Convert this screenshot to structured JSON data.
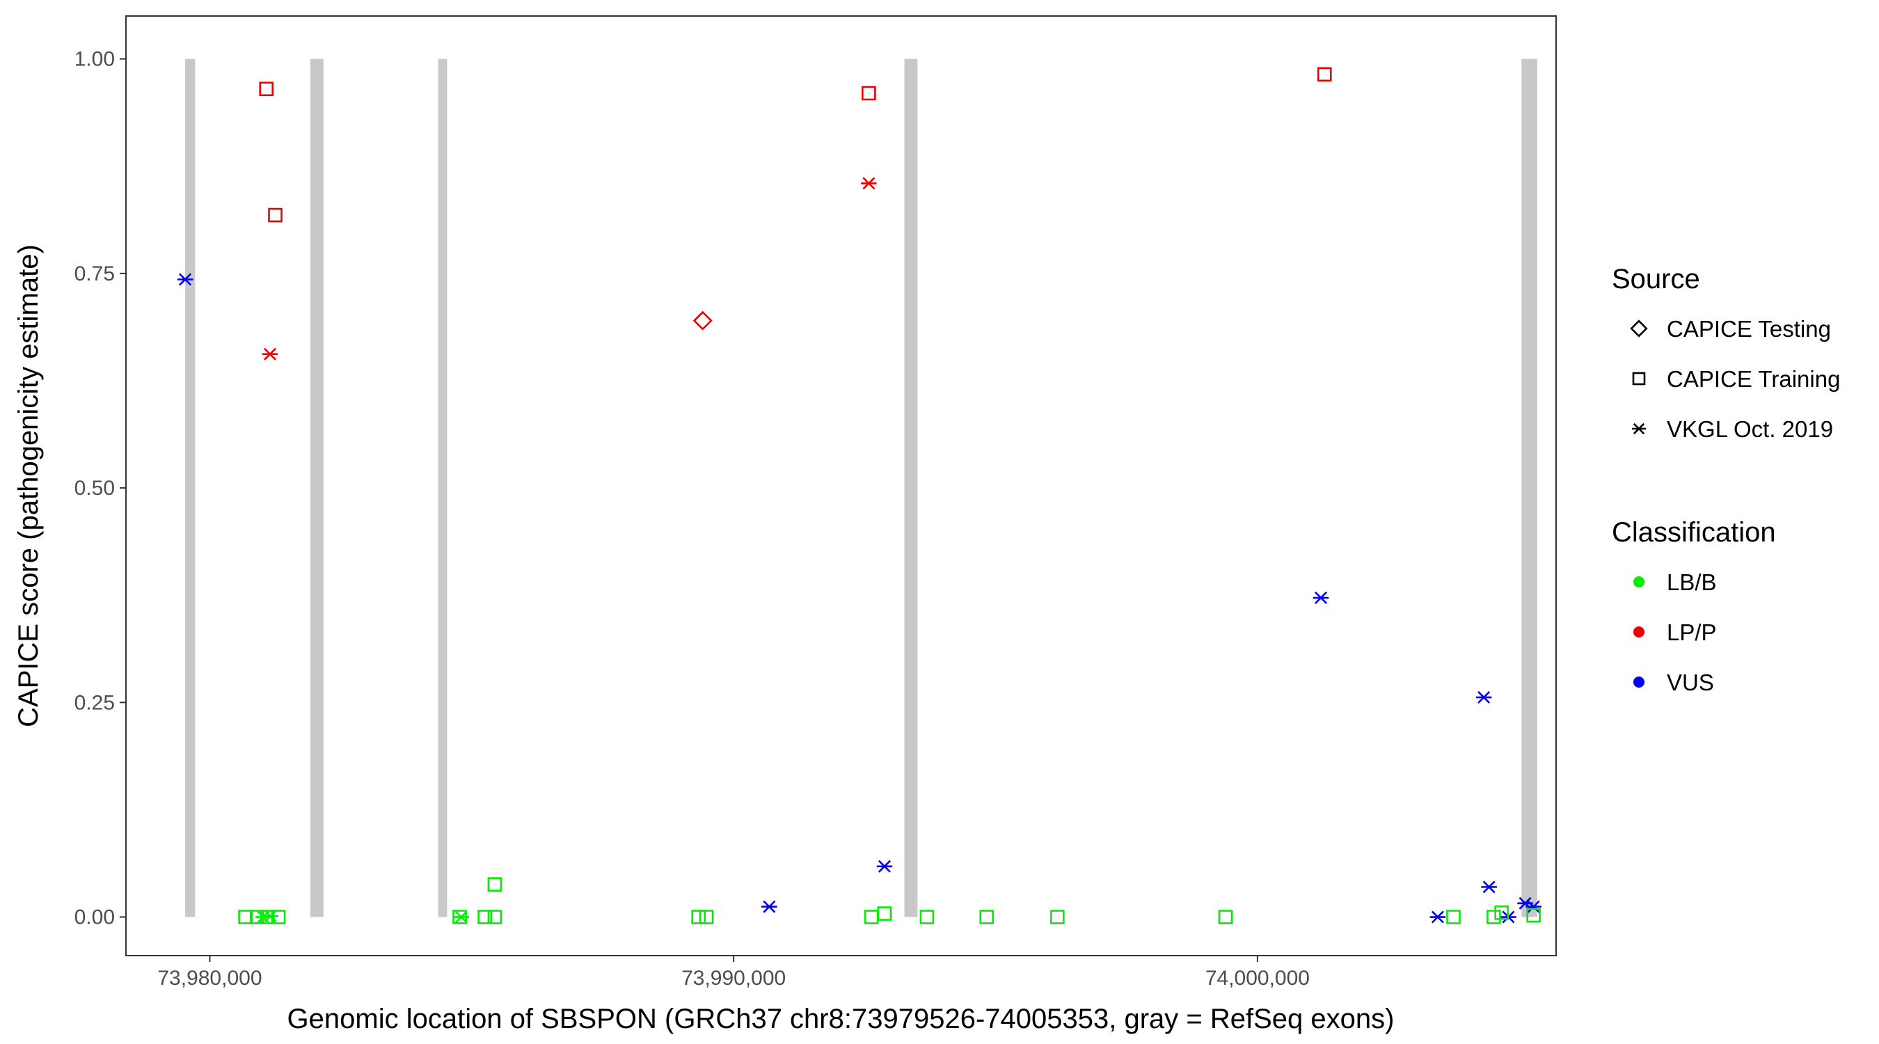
{
  "chart_data": {
    "type": "scatter",
    "xlabel": "Genomic location of SBSPON (GRCh37 chr8:73979526-74005353, gray = RefSeq exons)",
    "ylabel": "CAPICE score (pathogenicity estimate)",
    "xlim": [
      73978400,
      74005700
    ],
    "ylim": [
      -0.045,
      1.05
    ],
    "x_ticks": [
      73980000,
      73990000,
      74000000
    ],
    "x_tick_labels": [
      "73,980,000",
      "73,990,000",
      "74,000,000"
    ],
    "y_ticks": [
      0,
      0.25,
      0.5,
      0.75,
      1.0
    ],
    "y_tick_labels": [
      "0.00",
      "0.25",
      "0.50",
      "0.75",
      "1.00"
    ],
    "grid": false,
    "exon_color": "#c8c8c8",
    "exons": [
      {
        "start": 73979530,
        "end": 73979720
      },
      {
        "start": 73981920,
        "end": 73982170
      },
      {
        "start": 73984360,
        "end": 73984530
      },
      {
        "start": 73993260,
        "end": 73993510
      },
      {
        "start": 74005040,
        "end": 74005340
      }
    ],
    "legend": {
      "position": "right",
      "source": {
        "title": "Source",
        "items": [
          {
            "label": "CAPICE Testing",
            "shape": "diamond"
          },
          {
            "label": "CAPICE Training",
            "shape": "square"
          },
          {
            "label": "VKGL Oct. 2019",
            "shape": "asterisk"
          }
        ]
      },
      "classification": {
        "title": "Classification",
        "items": [
          {
            "label": "LB/B",
            "color": "#00ee00"
          },
          {
            "label": "LP/P",
            "color": "#ee0000"
          },
          {
            "label": "VUS",
            "color": "#0000ee"
          }
        ]
      }
    },
    "points": [
      {
        "x": 73981080,
        "y": 0.965,
        "source": "CAPICE Training",
        "class": "LP/P"
      },
      {
        "x": 73981250,
        "y": 0.818,
        "source": "CAPICE Training",
        "class": "LP/P"
      },
      {
        "x": 73981150,
        "y": 0.656,
        "source": "VKGL Oct. 2019",
        "class": "LP/P"
      },
      {
        "x": 73992580,
        "y": 0.96,
        "source": "CAPICE Training",
        "class": "LP/P"
      },
      {
        "x": 73992580,
        "y": 0.855,
        "source": "VKGL Oct. 2019",
        "class": "LP/P"
      },
      {
        "x": 74001280,
        "y": 0.982,
        "source": "CAPICE Training",
        "class": "LP/P"
      },
      {
        "x": 73989410,
        "y": 0.695,
        "source": "CAPICE Testing",
        "class": "LP/P"
      },
      {
        "x": 73979530,
        "y": 0.743,
        "source": "VKGL Oct. 2019",
        "class": "VUS"
      },
      {
        "x": 74001210,
        "y": 0.372,
        "source": "VKGL Oct. 2019",
        "class": "VUS"
      },
      {
        "x": 74004320,
        "y": 0.256,
        "source": "VKGL Oct. 2019",
        "class": "VUS"
      },
      {
        "x": 73992880,
        "y": 0.059,
        "source": "VKGL Oct. 2019",
        "class": "VUS"
      },
      {
        "x": 73990680,
        "y": 0.012,
        "source": "VKGL Oct. 2019",
        "class": "VUS"
      },
      {
        "x": 74004420,
        "y": 0.035,
        "source": "VKGL Oct. 2019",
        "class": "VUS"
      },
      {
        "x": 74003440,
        "y": 0.0,
        "source": "VKGL Oct. 2019",
        "class": "VUS"
      },
      {
        "x": 74004790,
        "y": 0.0,
        "source": "VKGL Oct. 2019",
        "class": "VUS"
      },
      {
        "x": 74005110,
        "y": 0.016,
        "source": "VKGL Oct. 2019",
        "class": "VUS"
      },
      {
        "x": 74005270,
        "y": 0.012,
        "source": "VKGL Oct. 2019",
        "class": "VUS"
      },
      {
        "x": 73980680,
        "y": 0.0,
        "source": "CAPICE Training",
        "class": "LB/B"
      },
      {
        "x": 73980900,
        "y": 0.0,
        "source": "CAPICE Training",
        "class": "LB/B"
      },
      {
        "x": 73981100,
        "y": 0.0,
        "source": "CAPICE Training",
        "class": "LB/B"
      },
      {
        "x": 73981310,
        "y": 0.0,
        "source": "CAPICE Training",
        "class": "LB/B"
      },
      {
        "x": 73981160,
        "y": 0.001,
        "source": "VKGL Oct. 2019",
        "class": "LB/B"
      },
      {
        "x": 73981020,
        "y": 0.0,
        "source": "VKGL Oct. 2019",
        "class": "LB/B"
      },
      {
        "x": 73984770,
        "y": 0.0,
        "source": "CAPICE Training",
        "class": "LB/B"
      },
      {
        "x": 73984800,
        "y": 0.0,
        "source": "VKGL Oct. 2019",
        "class": "LB/B"
      },
      {
        "x": 73985250,
        "y": 0.0,
        "source": "CAPICE Training",
        "class": "LB/B"
      },
      {
        "x": 73985440,
        "y": 0.0,
        "source": "CAPICE Training",
        "class": "LB/B"
      },
      {
        "x": 73985440,
        "y": 0.038,
        "source": "CAPICE Training",
        "class": "LB/B"
      },
      {
        "x": 73989330,
        "y": 0.0,
        "source": "CAPICE Training",
        "class": "LB/B"
      },
      {
        "x": 73989480,
        "y": 0.0,
        "source": "CAPICE Training",
        "class": "LB/B"
      },
      {
        "x": 73992630,
        "y": 0.0,
        "source": "CAPICE Training",
        "class": "LB/B"
      },
      {
        "x": 73992880,
        "y": 0.004,
        "source": "CAPICE Training",
        "class": "LB/B"
      },
      {
        "x": 73993690,
        "y": 0.0,
        "source": "CAPICE Training",
        "class": "LB/B"
      },
      {
        "x": 73994830,
        "y": 0.0,
        "source": "CAPICE Training",
        "class": "LB/B"
      },
      {
        "x": 73996180,
        "y": 0.0,
        "source": "CAPICE Training",
        "class": "LB/B"
      },
      {
        "x": 73999390,
        "y": 0.0,
        "source": "CAPICE Training",
        "class": "LB/B"
      },
      {
        "x": 74003740,
        "y": 0.0,
        "source": "CAPICE Training",
        "class": "LB/B"
      },
      {
        "x": 74004510,
        "y": 0.0,
        "source": "CAPICE Training",
        "class": "LB/B"
      },
      {
        "x": 74004660,
        "y": 0.005,
        "source": "CAPICE Training",
        "class": "LB/B"
      },
      {
        "x": 74005270,
        "y": 0.002,
        "source": "CAPICE Training",
        "class": "LB/B"
      }
    ]
  }
}
